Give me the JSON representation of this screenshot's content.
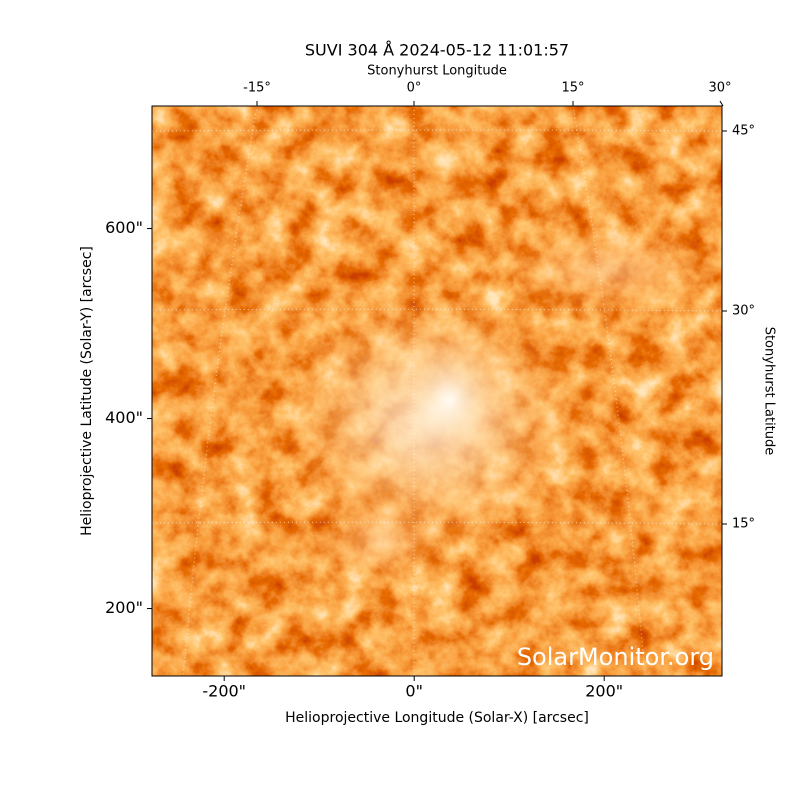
{
  "title": "SUVI 304 Å 2024-05-12 11:01:57",
  "watermark": "SolarMonitor.org",
  "axes": {
    "xlabel": "Helioprojective Longitude (Solar-X) [arcsec]",
    "ylabel": "Helioprojective Latitude (Solar-Y) [arcsec]",
    "xlim": [
      -276,
      324
    ],
    "ylim": [
      129,
      729
    ],
    "xticks": [
      {
        "value": -200,
        "label": "-200\""
      },
      {
        "value": 0,
        "label": "0\""
      },
      {
        "value": 200,
        "label": "200\""
      }
    ],
    "yticks": [
      {
        "value": 200,
        "label": "200\""
      },
      {
        "value": 400,
        "label": "400\""
      },
      {
        "value": 600,
        "label": "600\""
      }
    ],
    "top_label": "Stonyhurst Longitude",
    "right_label": "Stonyhurst Latitude",
    "top_ticks": [
      {
        "value": -15,
        "label": "-15°"
      },
      {
        "value": 0,
        "label": "0°"
      },
      {
        "value": 15,
        "label": "15°"
      },
      {
        "value": 30,
        "label": "30°"
      }
    ],
    "right_ticks": [
      {
        "value": 45,
        "label": "45°"
      },
      {
        "value": 30,
        "label": "30°"
      },
      {
        "value": 15,
        "label": "15°"
      }
    ]
  }
}
